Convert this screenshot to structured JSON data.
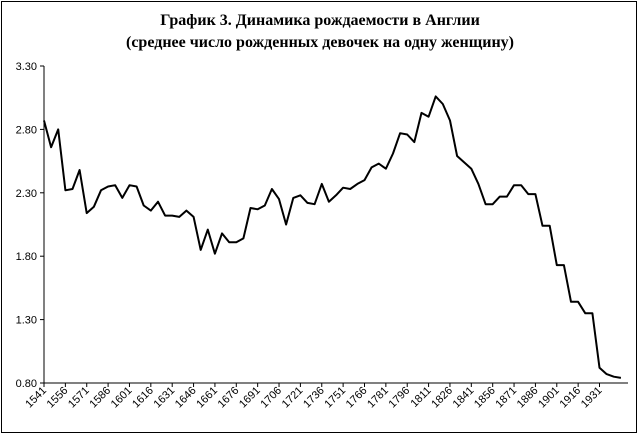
{
  "chart_data": {
    "type": "line",
    "title": "График 3. Динамика рождаемости в Англии",
    "subtitle": "(среднее число рожденных девочек на одну женщину)",
    "xlabel": "",
    "ylabel": "",
    "ylim": [
      0.8,
      3.3
    ],
    "xlim": [
      1541,
      1951
    ],
    "yticks": [
      "0.80",
      "1.30",
      "1.80",
      "2.30",
      "2.80",
      "3.30"
    ],
    "xticks": [
      "1541",
      "1556",
      "1571",
      "1586",
      "1601",
      "1616",
      "1631",
      "1646",
      "1661",
      "1676",
      "1691",
      "1706",
      "1721",
      "1736",
      "1751",
      "1766",
      "1781",
      "1796",
      "1811",
      "1826",
      "1841",
      "1856",
      "1871",
      "1886",
      "1901",
      "1916",
      "1931"
    ],
    "grid": false,
    "legend": "none",
    "line_color": "#000000",
    "series": [
      {
        "x": [
          1541,
          1546,
          1551,
          1556,
          1561,
          1566,
          1571,
          1576,
          1581,
          1586,
          1591,
          1596,
          1601,
          1606,
          1611,
          1616,
          1621,
          1626,
          1631,
          1636,
          1641,
          1646,
          1651,
          1656,
          1661,
          1666,
          1671,
          1676,
          1681,
          1686,
          1691,
          1696,
          1701,
          1706,
          1711,
          1716,
          1721,
          1726,
          1731,
          1736,
          1741,
          1746,
          1751,
          1756,
          1761,
          1766,
          1771,
          1776,
          1781,
          1786,
          1791,
          1796,
          1801,
          1806,
          1811,
          1816,
          1821,
          1826,
          1831,
          1836,
          1841,
          1846,
          1851,
          1856,
          1861,
          1866,
          1871,
          1876,
          1881,
          1886,
          1891,
          1896,
          1901,
          1906,
          1911,
          1916,
          1921,
          1926,
          1931,
          1936,
          1941,
          1946
        ],
        "values": [
          2.87,
          2.66,
          2.8,
          2.32,
          2.33,
          2.48,
          2.14,
          2.19,
          2.32,
          2.35,
          2.36,
          2.26,
          2.36,
          2.35,
          2.2,
          2.16,
          2.23,
          2.12,
          2.12,
          2.11,
          2.16,
          2.11,
          1.85,
          2.01,
          1.82,
          1.98,
          1.91,
          1.91,
          1.94,
          2.18,
          2.17,
          2.2,
          2.33,
          2.25,
          2.05,
          2.26,
          2.28,
          2.22,
          2.21,
          2.37,
          2.23,
          2.28,
          2.34,
          2.33,
          2.37,
          2.4,
          2.5,
          2.53,
          2.49,
          2.61,
          2.77,
          2.76,
          2.7,
          2.93,
          2.9,
          3.06,
          3.0,
          2.87,
          2.59,
          2.54,
          2.49,
          2.37,
          2.21,
          2.21,
          2.27,
          2.27,
          2.36,
          2.36,
          2.29,
          2.29,
          2.04,
          2.04,
          1.73,
          1.73,
          1.44,
          1.44,
          1.35,
          1.35,
          0.92,
          0.87,
          0.85,
          0.84
        ]
      }
    ]
  }
}
